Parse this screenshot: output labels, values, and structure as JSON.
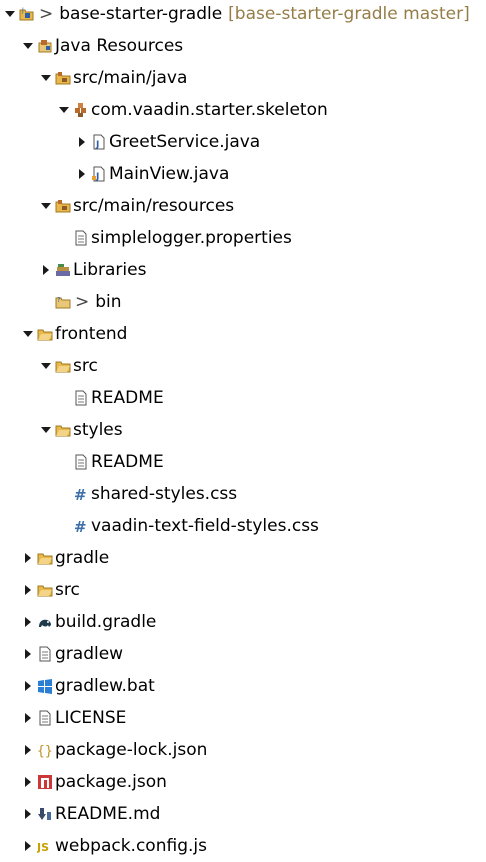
{
  "tree": {
    "root": {
      "label": "base-starter-gradle",
      "chevron": ">",
      "decoration": "[base-starter-gradle master]"
    },
    "java_resources": "Java Resources",
    "src_main_java": "src/main/java",
    "package_skeleton": "com.vaadin.starter.skeleton",
    "greet_service": "GreetService.java",
    "main_view": "MainView.java",
    "src_main_resources": "src/main/resources",
    "simplelogger": "simplelogger.properties",
    "libraries": "Libraries",
    "bin": {
      "chevron": ">",
      "label": "bin"
    },
    "frontend": "frontend",
    "frontend_src": "src",
    "frontend_src_readme": "README",
    "styles": "styles",
    "styles_readme": "README",
    "shared_styles": "shared-styles.css",
    "text_field_styles": "vaadin-text-field-styles.css",
    "gradle": "gradle",
    "src": "src",
    "build_gradle": "build.gradle",
    "gradlew": "gradlew",
    "gradlew_bat": "gradlew.bat",
    "license": "LICENSE",
    "package_lock": "package-lock.json",
    "package_json": "package.json",
    "readme_md": "README.md",
    "webpack_config": "webpack.config.js"
  },
  "colors": {
    "decoration": "#957d47",
    "folder": "#e8b84a",
    "package": "#b86b2b",
    "java_accent": "#2e5fa8"
  },
  "icons": {
    "root": "project-icon",
    "java_resources": "java-resources-icon",
    "source_folder": "source-folder-icon",
    "package": "package-icon",
    "java_file": "java-file-icon",
    "properties_file": "properties-file-icon",
    "libraries": "library-icon",
    "folder": "folder-icon",
    "css_file": "css-file-icon",
    "gradle_file": "gradle-file-icon",
    "text_file": "text-file-icon",
    "bat_file": "windows-bat-icon",
    "json_file": "json-file-icon",
    "npm_file": "npm-package-icon",
    "markdown_file": "markdown-file-icon",
    "js_file": "javascript-file-icon"
  }
}
